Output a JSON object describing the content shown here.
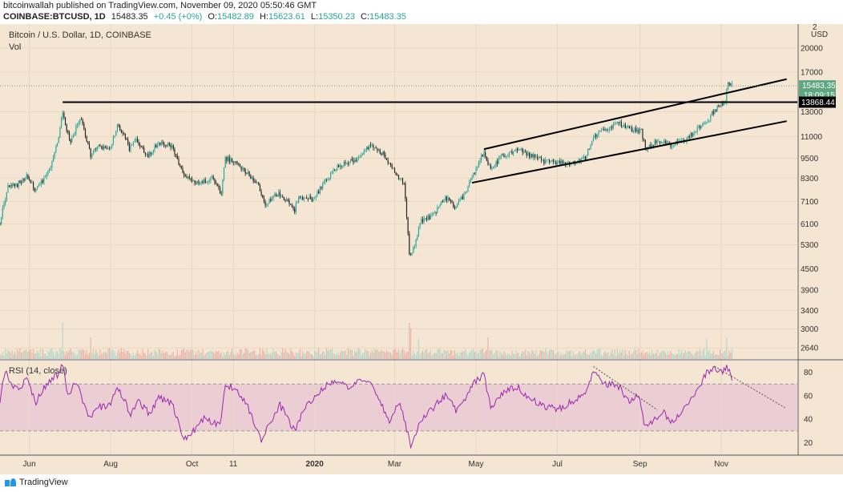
{
  "header": {
    "publisher_line": "bitcoinwallah published on TradingView.com, November 09, 2020 05:50:46 GMT",
    "symbol": "COINBASE:BTCUSD, 1D",
    "last": "15483.35",
    "change": "+0.45 (+0%)",
    "o_label": "O:",
    "o_value": "15482.89",
    "h_label": "H:",
    "h_value": "15623.61",
    "l_label": "L:",
    "l_value": "15350.23",
    "c_label": "C:",
    "c_value": "15483.35"
  },
  "legend": {
    "title": "Bitcoin / U.S. Dollar, 1D, COINBASE",
    "vol": "Vol",
    "rsi": "RSI (14, close)"
  },
  "footer": {
    "brand": "TradingView"
  },
  "colors": {
    "background": "#f5e6d3",
    "up": "#26a69a",
    "down": "#222222",
    "rsi_line": "#9c27b0",
    "rsi_band": "#e8c8d4",
    "price_tag": "#5fa783",
    "level_tag": "#000000"
  },
  "chart_data": [
    {
      "type": "candlestick",
      "title": "Bitcoin / U.S. Dollar, 1D, COINBASE",
      "currency": "USD",
      "scale": "log",
      "y_ticks": [
        2640,
        3000,
        3400,
        3900,
        4500,
        5300,
        6100,
        7100,
        8300,
        9500,
        11000,
        13000,
        17000,
        20000
      ],
      "top_tick_partial": "2",
      "x_ticks": [
        "Jun",
        "Aug",
        "Oct",
        "11",
        "2020",
        "Mar",
        "May",
        "Jul",
        "Sep",
        "Nov"
      ],
      "x_range": [
        "2019-05-10",
        "2020-12-28"
      ],
      "y_range": [
        2450,
        23500
      ],
      "current_price": "15483.35",
      "countdown": "18:09:15",
      "horizontal_level": "13868.44",
      "anchors": [
        [
          "2019-05-10",
          6150
        ],
        [
          "2019-05-16",
          7800
        ],
        [
          "2019-05-22",
          7900
        ],
        [
          "2019-05-30",
          8400
        ],
        [
          "2019-06-05",
          7700
        ],
        [
          "2019-06-12",
          8200
        ],
        [
          "2019-06-18",
          9200
        ],
        [
          "2019-06-22",
          10500
        ],
        [
          "2019-06-26",
          13000
        ],
        [
          "2019-06-29",
          11500
        ],
        [
          "2019-07-02",
          10500
        ],
        [
          "2019-07-09",
          12500
        ],
        [
          "2019-07-17",
          9700
        ],
        [
          "2019-07-22",
          10300
        ],
        [
          "2019-07-31",
          10000
        ],
        [
          "2019-08-06",
          11800
        ],
        [
          "2019-08-10",
          11300
        ],
        [
          "2019-08-15",
          10100
        ],
        [
          "2019-08-20",
          10800
        ],
        [
          "2019-08-28",
          9600
        ],
        [
          "2019-09-06",
          10500
        ],
        [
          "2019-09-16",
          10300
        ],
        [
          "2019-09-24",
          8500
        ],
        [
          "2019-10-06",
          8000
        ],
        [
          "2019-10-17",
          8300
        ],
        [
          "2019-10-23",
          7400
        ],
        [
          "2019-10-26",
          9500
        ],
        [
          "2019-11-03",
          9200
        ],
        [
          "2019-11-18",
          8100
        ],
        [
          "2019-11-25",
          7000
        ],
        [
          "2019-12-05",
          7500
        ],
        [
          "2019-12-17",
          6700
        ],
        [
          "2019-12-20",
          7300
        ],
        [
          "2019-12-31",
          7200
        ],
        [
          "2020-01-08",
          8000
        ],
        [
          "2020-01-18",
          9000
        ],
        [
          "2020-02-01",
          9400
        ],
        [
          "2020-02-12",
          10350
        ],
        [
          "2020-02-22",
          9700
        ],
        [
          "2020-03-01",
          8600
        ],
        [
          "2020-03-08",
          8000
        ],
        [
          "2020-03-12",
          4900
        ],
        [
          "2020-03-17",
          5400
        ],
        [
          "2020-03-20",
          6200
        ],
        [
          "2020-03-31",
          6500
        ],
        [
          "2020-04-08",
          7300
        ],
        [
          "2020-04-15",
          6800
        ],
        [
          "2020-04-23",
          7500
        ],
        [
          "2020-04-30",
          8700
        ],
        [
          "2020-05-07",
          9900
        ],
        [
          "2020-05-12",
          8800
        ],
        [
          "2020-05-20",
          9600
        ],
        [
          "2020-06-01",
          10100
        ],
        [
          "2020-06-10",
          9700
        ],
        [
          "2020-06-20",
          9300
        ],
        [
          "2020-07-01",
          9200
        ],
        [
          "2020-07-15",
          9200
        ],
        [
          "2020-07-22",
          9500
        ],
        [
          "2020-07-28",
          11000
        ],
        [
          "2020-08-02",
          11300
        ],
        [
          "2020-08-10",
          11800
        ],
        [
          "2020-08-17",
          12000
        ],
        [
          "2020-08-26",
          11500
        ],
        [
          "2020-09-02",
          11400
        ],
        [
          "2020-09-05",
          10200
        ],
        [
          "2020-09-15",
          10700
        ],
        [
          "2020-09-23",
          10400
        ],
        [
          "2020-10-05",
          10700
        ],
        [
          "2020-10-12",
          11400
        ],
        [
          "2020-10-20",
          12000
        ],
        [
          "2020-10-26",
          13000
        ],
        [
          "2020-11-01",
          13700
        ],
        [
          "2020-11-04",
          14100
        ],
        [
          "2020-11-06",
          15600
        ],
        [
          "2020-11-09",
          15483
        ]
      ],
      "trendlines": [
        {
          "name": "horizontal-resistance",
          "points": [
            [
              "2019-06-26",
              13868.44
            ],
            [
              "2020-12-28",
              13868.44
            ]
          ]
        },
        {
          "name": "channel-upper",
          "points": [
            [
              "2020-05-07",
              10100
            ],
            [
              "2020-12-20",
              16200
            ]
          ]
        },
        {
          "name": "channel-lower",
          "points": [
            [
              "2020-04-28",
              8050
            ],
            [
              "2020-12-20",
              12200
            ]
          ]
        }
      ]
    },
    {
      "type": "bar",
      "title": "Vol",
      "spikes": [
        [
          "2019-06-26",
          1.0
        ],
        [
          "2019-07-17",
          0.6
        ],
        [
          "2020-03-12",
          1.0
        ],
        [
          "2020-03-13",
          0.85
        ],
        [
          "2020-03-19",
          0.55
        ],
        [
          "2020-05-10",
          0.6
        ],
        [
          "2020-10-21",
          0.55
        ],
        [
          "2020-11-05",
          0.6
        ]
      ]
    },
    {
      "type": "line",
      "title": "RSI (14, close)",
      "y_ticks": [
        20,
        40,
        60,
        80
      ],
      "y_range": [
        10,
        90
      ],
      "band": [
        30,
        70
      ],
      "anchors": [
        [
          "2019-05-10",
          56
        ],
        [
          "2019-05-14",
          82
        ],
        [
          "2019-05-18",
          70
        ],
        [
          "2019-05-24",
          64
        ],
        [
          "2019-05-30",
          74
        ],
        [
          "2019-06-06",
          55
        ],
        [
          "2019-06-14",
          70
        ],
        [
          "2019-06-22",
          78
        ],
        [
          "2019-06-26",
          87
        ],
        [
          "2019-06-30",
          60
        ],
        [
          "2019-07-06",
          72
        ],
        [
          "2019-07-16",
          40
        ],
        [
          "2019-07-22",
          50
        ],
        [
          "2019-08-01",
          52
        ],
        [
          "2019-08-06",
          68
        ],
        [
          "2019-08-16",
          45
        ],
        [
          "2019-08-22",
          55
        ],
        [
          "2019-08-30",
          45
        ],
        [
          "2019-09-06",
          58
        ],
        [
          "2019-09-16",
          54
        ],
        [
          "2019-09-25",
          22
        ],
        [
          "2019-10-02",
          30
        ],
        [
          "2019-10-10",
          40
        ],
        [
          "2019-10-22",
          35
        ],
        [
          "2019-10-26",
          70
        ],
        [
          "2019-11-04",
          65
        ],
        [
          "2019-11-12",
          50
        ],
        [
          "2019-11-22",
          22
        ],
        [
          "2019-11-30",
          40
        ],
        [
          "2019-12-06",
          52
        ],
        [
          "2019-12-17",
          30
        ],
        [
          "2019-12-24",
          48
        ],
        [
          "2020-01-06",
          65
        ],
        [
          "2020-01-14",
          72
        ],
        [
          "2020-01-25",
          68
        ],
        [
          "2020-02-05",
          72
        ],
        [
          "2020-02-13",
          72
        ],
        [
          "2020-02-20",
          52
        ],
        [
          "2020-02-26",
          38
        ],
        [
          "2020-03-05",
          55
        ],
        [
          "2020-03-13",
          17
        ],
        [
          "2020-03-20",
          38
        ],
        [
          "2020-03-28",
          48
        ],
        [
          "2020-04-08",
          60
        ],
        [
          "2020-04-16",
          48
        ],
        [
          "2020-04-25",
          60
        ],
        [
          "2020-04-30",
          72
        ],
        [
          "2020-05-07",
          78
        ],
        [
          "2020-05-12",
          50
        ],
        [
          "2020-05-20",
          62
        ],
        [
          "2020-06-01",
          68
        ],
        [
          "2020-06-10",
          58
        ],
        [
          "2020-06-20",
          52
        ],
        [
          "2020-07-01",
          48
        ],
        [
          "2020-07-12",
          55
        ],
        [
          "2020-07-22",
          62
        ],
        [
          "2020-07-28",
          82
        ],
        [
          "2020-08-04",
          70
        ],
        [
          "2020-08-10",
          70
        ],
        [
          "2020-08-16",
          68
        ],
        [
          "2020-08-24",
          55
        ],
        [
          "2020-08-31",
          60
        ],
        [
          "2020-09-05",
          33
        ],
        [
          "2020-09-12",
          40
        ],
        [
          "2020-09-19",
          45
        ],
        [
          "2020-09-24",
          38
        ],
        [
          "2020-10-02",
          45
        ],
        [
          "2020-10-09",
          58
        ],
        [
          "2020-10-14",
          65
        ],
        [
          "2020-10-21",
          80
        ],
        [
          "2020-10-27",
          85
        ],
        [
          "2020-11-02",
          78
        ],
        [
          "2020-11-05",
          87
        ],
        [
          "2020-11-09",
          72
        ]
      ],
      "trendlines": [
        {
          "name": "rsi-divergence-summer",
          "points": [
            [
              "2020-07-28",
              85
            ],
            [
              "2020-09-14",
              48
            ]
          ]
        },
        {
          "name": "rsi-divergence-fall",
          "points": [
            [
              "2020-10-27",
              85
            ],
            [
              "2020-12-20",
              49
            ]
          ]
        }
      ]
    }
  ]
}
